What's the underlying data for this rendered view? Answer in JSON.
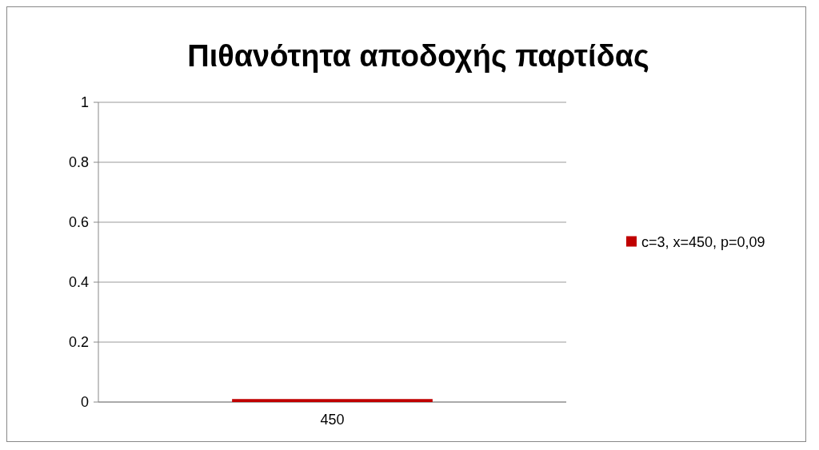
{
  "chart_data": {
    "type": "bar",
    "title": "Πιθανότητα αποδοχής παρτίδας",
    "categories": [
      "450"
    ],
    "series": [
      {
        "name": "c=3, x=450, p=0,09",
        "color": "#c00000",
        "values": [
          0.01
        ]
      }
    ],
    "ylim": [
      0,
      1
    ],
    "yticks": [
      0,
      {
        "value": 0.2,
        "label": "0.2"
      },
      {
        "value": 0.4,
        "label": "0.4"
      },
      {
        "value": 0.6,
        "label": "0.6"
      },
      {
        "value": 0.8,
        "label": "0.8"
      },
      1
    ],
    "grid": "y",
    "legend": "right"
  }
}
